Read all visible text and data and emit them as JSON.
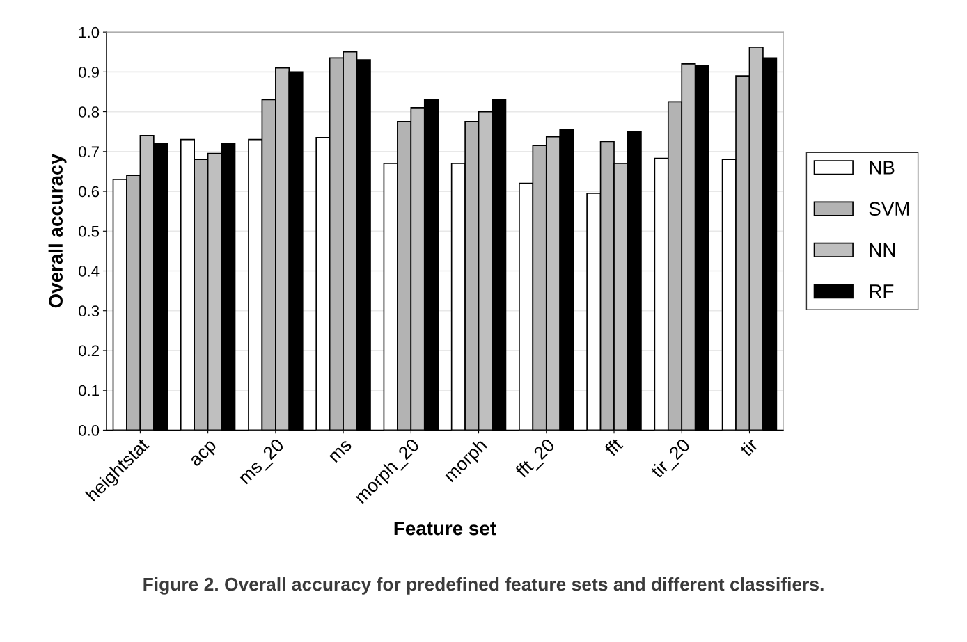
{
  "chart_data": {
    "type": "bar",
    "xlabel": "Feature set",
    "ylabel": "Overall accuracy",
    "categories": [
      "heightstat",
      "acp",
      "ms_20",
      "ms",
      "morph_20",
      "morph",
      "fft_20",
      "fft",
      "tir_20",
      "tir"
    ],
    "series": [
      {
        "name": "NB",
        "color": "#ffffff",
        "values": [
          0.63,
          0.73,
          0.73,
          0.735,
          0.67,
          0.67,
          0.62,
          0.595,
          0.683,
          0.68
        ]
      },
      {
        "name": "SVM",
        "color": "#b3b3b3",
        "values": [
          0.64,
          0.68,
          0.83,
          0.935,
          0.775,
          0.775,
          0.715,
          0.725,
          0.825,
          0.89
        ]
      },
      {
        "name": "NN",
        "color": "#bfbfbf",
        "values": [
          0.74,
          0.695,
          0.91,
          0.95,
          0.81,
          0.8,
          0.737,
          0.67,
          0.92,
          0.962
        ]
      },
      {
        "name": "RF",
        "color": "#000000",
        "values": [
          0.72,
          0.72,
          0.9,
          0.93,
          0.83,
          0.83,
          0.755,
          0.75,
          0.915,
          0.935
        ]
      }
    ],
    "ylim": [
      0.0,
      1.0
    ],
    "yticks": [
      {
        "value": 0,
        "label": "0.0"
      },
      0.1,
      0.2,
      0.3,
      0.4,
      0.5,
      0.6,
      0.7,
      0.8,
      0.9,
      {
        "value": 1,
        "label": "1.0"
      }
    ],
    "grid": "y",
    "legend": "right",
    "annotations": [
      "Figure 2. Overall accuracy for predefined feature sets and different classifiers."
    ]
  }
}
